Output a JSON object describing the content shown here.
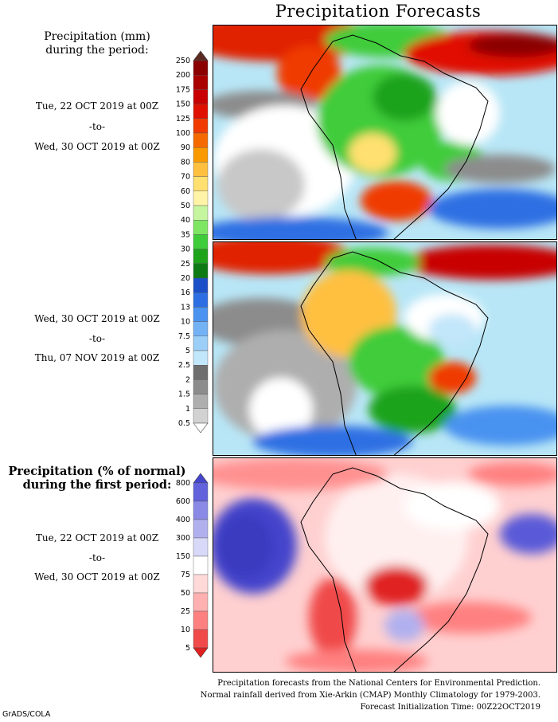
{
  "title": "Precipitation Forecasts",
  "legend_mm": {
    "heading_line1": "Precipitation (mm)",
    "heading_line2": "during the period:",
    "levels": [
      "250",
      "200",
      "175",
      "150",
      "125",
      "100",
      "90",
      "80",
      "70",
      "60",
      "50",
      "40",
      "35",
      "30",
      "25",
      "20",
      "16",
      "13",
      "10",
      "7.5",
      "5",
      "2.5",
      "2",
      "1.5",
      "1",
      "0.5"
    ],
    "colors": [
      "#5a2a22",
      "#8b0000",
      "#a90000",
      "#c80000",
      "#e01000",
      "#f03a00",
      "#f56a00",
      "#fb9a00",
      "#ffc040",
      "#ffe070",
      "#fff3a8",
      "#c6f5a0",
      "#7ee663",
      "#3fcc3a",
      "#1ea31a",
      "#0d7a14",
      "#1a4fc8",
      "#2d6fe3",
      "#4a93f0",
      "#73b2f4",
      "#9ccff7",
      "#c2e6fa",
      "#6e6e6e",
      "#8c8c8c",
      "#aeaeae",
      "#d2d2d2",
      "#ffffff"
    ]
  },
  "legend_pct": {
    "heading_line1": "Precipitation (% of normal)",
    "heading_line2": "during the first period:",
    "levels": [
      "800",
      "600",
      "400",
      "300",
      "150",
      "75",
      "50",
      "25",
      "10",
      "5"
    ],
    "colors": [
      "#4545cc",
      "#6262dc",
      "#8a8ae6",
      "#b0b0ef",
      "#d8d8f8",
      "#ffffff",
      "#ffd8d8",
      "#ffb0b0",
      "#ff8080",
      "#f04a4a",
      "#e02020"
    ]
  },
  "periods": [
    {
      "start": "Tue, 22 OCT 2019 at 00Z",
      "sep": "-to-",
      "end": "Wed, 30 OCT 2019 at 00Z"
    },
    {
      "start": "Wed, 30 OCT 2019 at 00Z",
      "sep": "-to-",
      "end": "Thu, 07 NOV 2019 at 00Z"
    },
    {
      "start": "Tue, 22 OCT 2019 at 00Z",
      "sep": "-to-",
      "end": "Wed, 30 OCT 2019 at 00Z"
    }
  ],
  "footer": {
    "line1": "Precipitation forecasts from the National Centers for Environmental Prediction.",
    "line2": "Normal rainfall derived from Xie-Arkin (CMAP) Monthly Climatology for 1979-2003.",
    "line3": "Forecast Initialization Time: 00Z22OCT2019"
  },
  "credit": "GrADS/COLA"
}
